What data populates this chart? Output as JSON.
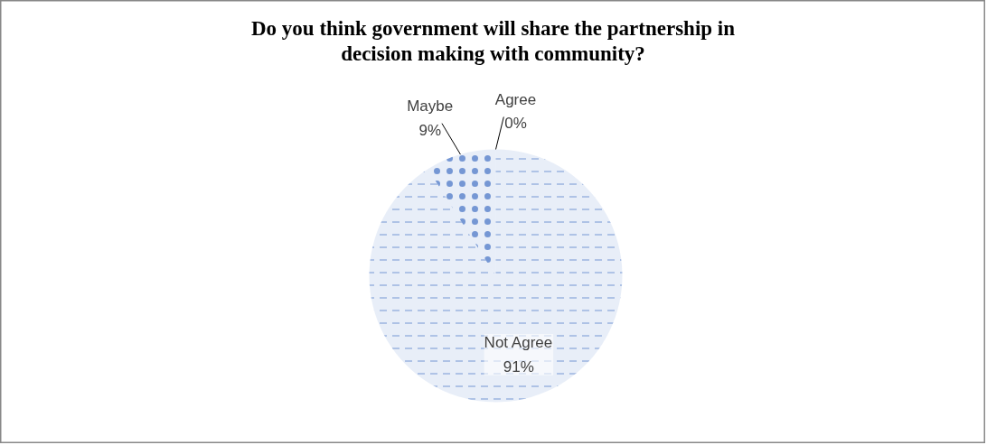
{
  "chart_data": {
    "type": "pie",
    "title": "Do you think government will share the partnership in decision making with community?",
    "categories": [
      "Agree",
      "Not Agree",
      "Maybe"
    ],
    "values": [
      0,
      91,
      9
    ],
    "colors": [
      "#4472c4",
      "#4472c4",
      "#4472c4"
    ],
    "value_labels": [
      "0%",
      "91%",
      "9%"
    ]
  }
}
